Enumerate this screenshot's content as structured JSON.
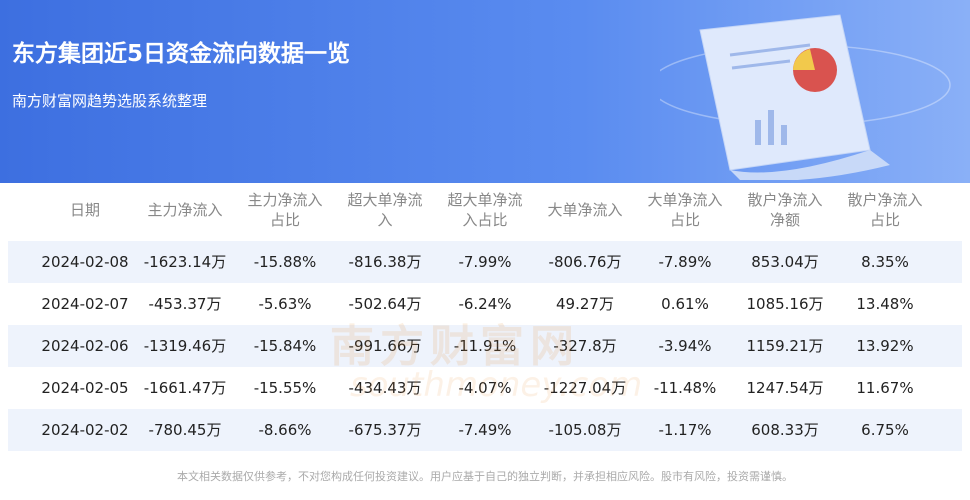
{
  "header": {
    "title": "东方集团近5日资金流向数据一览",
    "subtitle": "南方财富网趋势选股系统整理"
  },
  "table": {
    "columns": [
      "日期",
      "主力净流入",
      "主力净流入\n占比",
      "超大单净流\n入",
      "超大单净流\n入占比",
      "大单净流入",
      "大单净流入\n占比",
      "散户净流入\n净额",
      "散户净流入\n占比"
    ],
    "rows": [
      [
        "2024-02-08",
        "-1623.14万",
        "-15.88%",
        "-816.38万",
        "-7.99%",
        "-806.76万",
        "-7.89%",
        "853.04万",
        "8.35%"
      ],
      [
        "2024-02-07",
        "-453.37万",
        "-5.63%",
        "-502.64万",
        "-6.24%",
        "49.27万",
        "0.61%",
        "1085.16万",
        "13.48%"
      ],
      [
        "2024-02-06",
        "-1319.46万",
        "-15.84%",
        "-991.66万",
        "-11.91%",
        "-327.8万",
        "-3.94%",
        "1159.21万",
        "13.92%"
      ],
      [
        "2024-02-05",
        "-1661.47万",
        "-15.55%",
        "-434.43万",
        "-4.07%",
        "-1227.04万",
        "-11.48%",
        "1247.54万",
        "11.67%"
      ],
      [
        "2024-02-02",
        "-780.45万",
        "-8.66%",
        "-675.37万",
        "-7.49%",
        "-105.08万",
        "-1.17%",
        "608.33万",
        "6.75%"
      ]
    ]
  },
  "watermark": {
    "cn": "南方财富网",
    "en": "southmoney.com"
  },
  "footer": "本文相关数据仅供参考，不对您构成任何投资建议。用户应基于自己的独立判断，并承担相应风险。股市有风险，投资需谨慎。"
}
